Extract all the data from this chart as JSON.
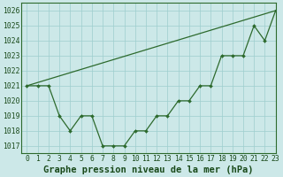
{
  "title": "Graphe pression niveau de la mer (hPa)",
  "xlim": [
    -0.5,
    23
  ],
  "ylim": [
    1016.5,
    1026.5
  ],
  "yticks": [
    1017,
    1018,
    1019,
    1020,
    1021,
    1022,
    1023,
    1024,
    1025,
    1026
  ],
  "xticks": [
    0,
    1,
    2,
    3,
    4,
    5,
    6,
    7,
    8,
    9,
    10,
    11,
    12,
    13,
    14,
    15,
    16,
    17,
    18,
    19,
    20,
    21,
    22,
    23
  ],
  "line1_x": [
    0,
    1,
    2,
    3,
    4,
    5,
    6,
    7,
    8,
    9,
    10,
    11,
    12,
    13,
    14,
    15,
    16,
    17,
    18,
    19,
    20,
    21,
    22,
    23
  ],
  "line1_y": [
    1021,
    1021,
    1021,
    1019,
    1018,
    1019,
    1019,
    1017,
    1017,
    1017,
    1018,
    1018,
    1019,
    1019,
    1020,
    1020,
    1021,
    1021,
    1023,
    1023,
    1023,
    1025,
    1024,
    1026
  ],
  "line2_x": [
    0,
    23
  ],
  "line2_y": [
    1021,
    1026
  ],
  "line_color": "#2d6a2d",
  "bg_color": "#cce8e8",
  "grid_color": "#9ecece",
  "title_color": "#1a4a1a",
  "tick_label_color": "#1a4a1a",
  "title_fontsize": 7.5,
  "tick_fontsize": 5.8,
  "lw": 0.9
}
